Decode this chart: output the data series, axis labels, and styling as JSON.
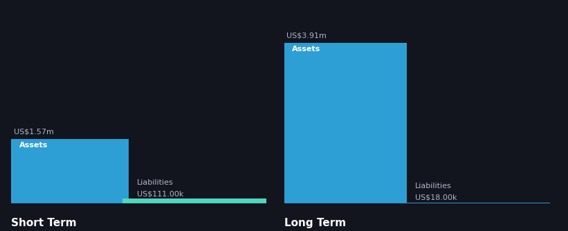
{
  "background_color": "#12151e",
  "short_term": {
    "assets_value": 1570000,
    "assets_label": "US$1.57m",
    "assets_bar_label": "Assets",
    "assets_color": "#2e9fd4",
    "liabilities_value": 111000,
    "liabilities_label": "US$111.00k",
    "liabilities_bar_label": "Liabilities",
    "liabilities_color": "#4ed8c0",
    "section_label": "Short Term"
  },
  "long_term": {
    "assets_value": 3910000,
    "assets_label": "US$3.91m",
    "assets_bar_label": "Assets",
    "assets_color": "#2e9fd4",
    "liabilities_value": 18000,
    "liabilities_label": "US$18.00k",
    "liabilities_bar_label": "Liabilities",
    "liabilities_color": "#2e9fd4",
    "section_label": "Long Term"
  },
  "max_value": 3910000,
  "text_color": "#ffffff",
  "label_color": "#b0b8c8",
  "font_size_value": 8.0,
  "font_size_label": 8.0,
  "font_size_section": 11,
  "font_size_bar_label": 8.0,
  "line_color": "#3a3f52"
}
